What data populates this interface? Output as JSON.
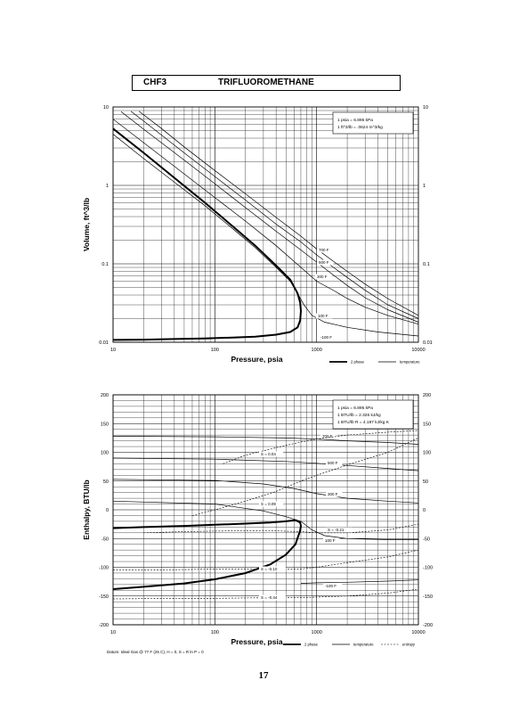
{
  "header": {
    "formula": "CHF3",
    "name": "TRIFLUOROMETHANE"
  },
  "page_number": "17",
  "datum_note": "Datum: Ideal Gas @ 77 F (25 C), H = 0, S = R ln P = 0",
  "chart_data": [
    {
      "type": "line",
      "xlabel": "Pressure,  psia",
      "ylabel": "Volume, ft^3/lb",
      "xscale": "log",
      "yscale": "log",
      "xlim": [
        10,
        10000
      ],
      "ylim": [
        0.01,
        10
      ],
      "xticks": [
        "10",
        "100",
        "1000",
        "10000"
      ],
      "yticks": [
        "0.01",
        "0.1",
        "1",
        "10"
      ],
      "grid": true,
      "legend_position": "bottom-right",
      "legend": [
        "2 phase",
        "temperature"
      ],
      "note_lines": [
        "1 psia  =  6.895 kPa",
        "1 ft^3/lb  =  .0624 m^3/kg"
      ],
      "series": [
        {
          "name": "2 phase",
          "style": "thick",
          "x": [
            10,
            20,
            40,
            80,
            150,
            250,
            400,
            550,
            650,
            690,
            700,
            690,
            650,
            550,
            400,
            250,
            150,
            80,
            40,
            20,
            10
          ],
          "y": [
            5.3,
            2.6,
            1.25,
            0.6,
            0.3,
            0.17,
            0.095,
            0.063,
            0.042,
            0.032,
            0.025,
            0.019,
            0.0155,
            0.0135,
            0.0125,
            0.0118,
            0.0115,
            0.0112,
            0.011,
            0.0108,
            0.0107
          ]
        },
        {
          "name": "",
          "label": "-100 F",
          "style": "thin",
          "x": [
            10,
            20,
            40,
            80,
            150,
            250,
            400,
            550,
            650,
            750,
            900,
            1200,
            2000,
            4000,
            10000
          ],
          "y": [
            4.5,
            2.2,
            1.1,
            0.55,
            0.28,
            0.16,
            0.09,
            0.06,
            0.042,
            0.03,
            0.022,
            0.018,
            0.0155,
            0.0135,
            0.012
          ]
        },
        {
          "name": "",
          "label": "100 F",
          "style": "thin",
          "x": [
            10,
            20,
            50,
            100,
            200,
            400,
            700,
            1000,
            1500,
            2000,
            3000,
            5000,
            10000
          ],
          "y": [
            7,
            3.5,
            1.4,
            0.7,
            0.35,
            0.17,
            0.09,
            0.06,
            0.045,
            0.036,
            0.028,
            0.022,
            0.017
          ]
        },
        {
          "name": "",
          "label": "300 F",
          "style": "thin",
          "x": [
            12,
            20,
            50,
            100,
            200,
            400,
            700,
            1000,
            1500,
            2000,
            3000,
            5000,
            10000
          ],
          "y": [
            8.7,
            5.2,
            2.1,
            1.05,
            0.52,
            0.26,
            0.15,
            0.105,
            0.07,
            0.053,
            0.037,
            0.026,
            0.018
          ]
        },
        {
          "name": "",
          "label": "500 F",
          "style": "thin",
          "x": [
            15,
            20,
            50,
            100,
            200,
            400,
            700,
            1000,
            1500,
            2000,
            3000,
            5000,
            10000
          ],
          "y": [
            8.8,
            6.6,
            2.6,
            1.3,
            0.65,
            0.32,
            0.19,
            0.13,
            0.088,
            0.067,
            0.046,
            0.03,
            0.02
          ]
        },
        {
          "name": "",
          "label": "700 F",
          "style": "thin",
          "x": [
            18,
            30,
            50,
            100,
            200,
            400,
            700,
            1000,
            1500,
            2000,
            3000,
            5000,
            10000
          ],
          "y": [
            8.8,
            5.3,
            3.1,
            1.55,
            0.78,
            0.39,
            0.225,
            0.155,
            0.105,
            0.08,
            0.055,
            0.036,
            0.022
          ]
        }
      ]
    },
    {
      "type": "line",
      "xlabel": "Pressure,  psia",
      "ylabel": "Enthalpy, BTU/lb",
      "xscale": "log",
      "xlim": [
        10,
        10000
      ],
      "ylim": [
        -200,
        200
      ],
      "xticks": [
        "10",
        "100",
        "1000",
        "10000"
      ],
      "yticks": [
        "-200",
        "-150",
        "-100",
        "-50",
        "0",
        "50",
        "100",
        "150",
        "200"
      ],
      "grid": true,
      "legend_position": "bottom-right",
      "legend": [
        "2 phase",
        "temperature",
        "entropy"
      ],
      "note_lines": [
        "1 psia  =  6.895 kPa",
        "1 BTU/lb  =  2.326 kJ/kg",
        "1 BTU/lb R  =  4.187 kJ/kg K"
      ],
      "series": [
        {
          "name": "2 phase",
          "style": "thick",
          "x": [
            10,
            20,
            50,
            100,
            200,
            350,
            500,
            620,
            690,
            700,
            690,
            620,
            500,
            350,
            200,
            100,
            50,
            20,
            10
          ],
          "y": [
            -32,
            -30,
            -28,
            -26,
            -24,
            -22,
            -20,
            -18,
            -22,
            -28,
            -36,
            -60,
            -78,
            -95,
            -110,
            -121,
            -128,
            -134,
            -138
          ]
        },
        {
          "name": "",
          "label": "700 F",
          "style": "thin",
          "x": [
            10,
            100,
            500,
            1000,
            2000,
            5000,
            10000
          ],
          "y": [
            128,
            127,
            125,
            123,
            120,
            117,
            114
          ]
        },
        {
          "name": "",
          "label": "500 F",
          "style": "thin",
          "x": [
            10,
            100,
            500,
            1000,
            2000,
            5000,
            10000
          ],
          "y": [
            90,
            88,
            84,
            81,
            77,
            72,
            68
          ]
        },
        {
          "name": "",
          "label": "300 F",
          "style": "thin",
          "x": [
            10,
            100,
            300,
            600,
            1000,
            2000,
            5000,
            10000
          ],
          "y": [
            53,
            51,
            45,
            37,
            28,
            20,
            15,
            12
          ]
        },
        {
          "name": "",
          "label": "100 F",
          "style": "thin",
          "x": [
            10,
            100,
            300,
            500,
            700,
            900,
            1200,
            2000,
            5000,
            10000
          ],
          "y": [
            15,
            10,
            -2,
            -12,
            -20,
            -35,
            -45,
            -50,
            -52,
            -52
          ]
        },
        {
          "name": "",
          "label": "-100 F",
          "style": "thin",
          "x": [
            700,
            1000,
            2000,
            5000,
            10000
          ],
          "y": [
            -128,
            -127,
            -126,
            -124,
            -122
          ]
        },
        {
          "name": "",
          "label": "S = 0.04",
          "style": "dashed",
          "x": [
            120,
            200,
            400,
            700,
            1000,
            2000,
            5000,
            10000
          ],
          "y": [
            80,
            95,
            108,
            118,
            123,
            130,
            135,
            138
          ]
        },
        {
          "name": "",
          "label": "S = 0.09",
          "style": "dashed",
          "x": [
            60,
            100,
            200,
            400,
            700,
            1000,
            2000,
            5000,
            10000
          ],
          "y": [
            -10,
            0,
            15,
            32,
            50,
            60,
            78,
            100,
            125
          ]
        },
        {
          "name": "",
          "label": "S = -0.21",
          "style": "dashed",
          "x": [
            20,
            50,
            100,
            300,
            700,
            1000,
            2000,
            5000,
            10000
          ],
          "y": [
            -40,
            -38,
            -37,
            -36,
            -38,
            -40,
            -40,
            -35,
            -25
          ]
        },
        {
          "name": "",
          "label": "S = -0.10",
          "style": "dashed",
          "x": [
            10,
            50,
            100,
            200,
            400,
            700,
            1000,
            2000,
            5000,
            10000
          ],
          "y": [
            -105,
            -104,
            -103,
            -103,
            -104,
            -103,
            -100,
            -92,
            -82,
            -70
          ]
        },
        {
          "name": "",
          "label": "S = -0.44",
          "style": "dashed",
          "x": [
            10,
            50,
            100,
            300,
            700,
            1000,
            2000,
            5000,
            10000
          ],
          "y": [
            -155,
            -154,
            -154,
            -153,
            -153,
            -152,
            -150,
            -145,
            -138
          ]
        }
      ]
    }
  ]
}
